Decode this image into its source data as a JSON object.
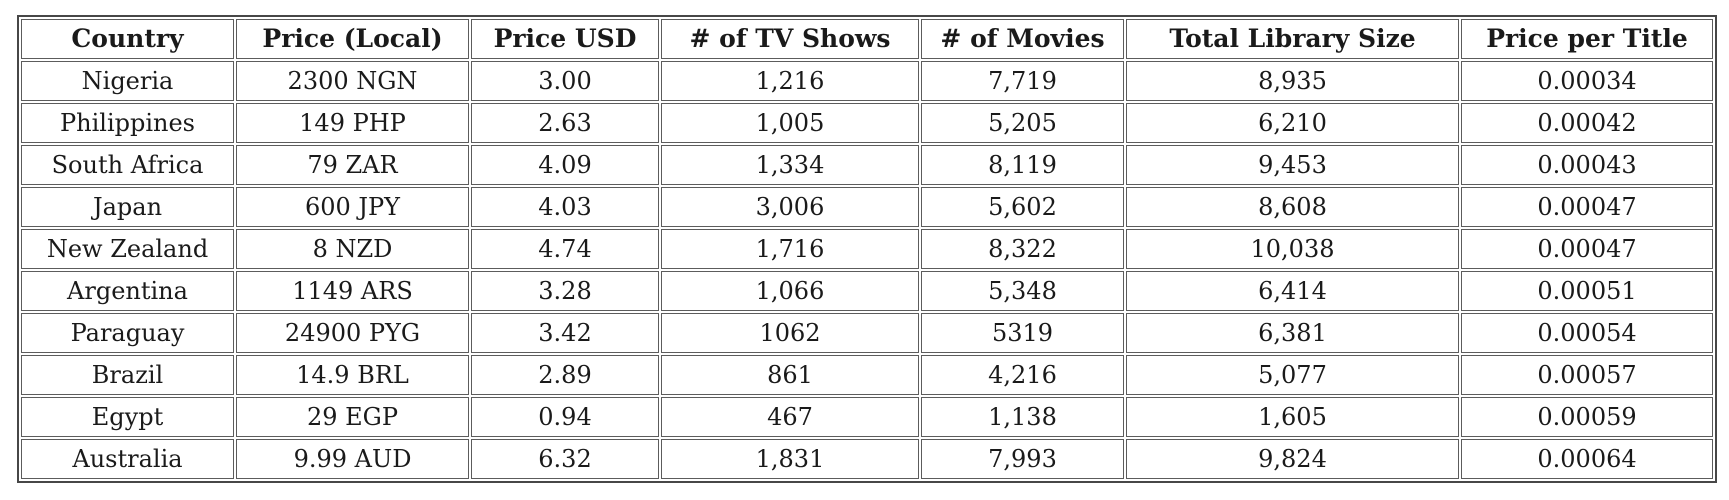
{
  "chart_data": {
    "type": "table",
    "columns": [
      "Country",
      "Price (Local)",
      "Price USD",
      "# of TV Shows",
      "# of Movies",
      "Total Library Size",
      "Price per Title"
    ],
    "rows": [
      [
        "Nigeria",
        "2300 NGN",
        "3.00",
        "1,216",
        "7,719",
        "8,935",
        "0.00034"
      ],
      [
        "Philippines",
        "149 PHP",
        "2.63",
        "1,005",
        "5,205",
        "6,210",
        "0.00042"
      ],
      [
        "South Africa",
        "79 ZAR",
        "4.09",
        "1,334",
        "8,119",
        "9,453",
        "0.00043"
      ],
      [
        "Japan",
        "600 JPY",
        "4.03",
        "3,006",
        "5,602",
        "8,608",
        "0.00047"
      ],
      [
        "New Zealand",
        "8 NZD",
        "4.74",
        "1,716",
        "8,322",
        "10,038",
        "0.00047"
      ],
      [
        "Argentina",
        "1149 ARS",
        "3.28",
        "1,066",
        "5,348",
        "6,414",
        "0.00051"
      ],
      [
        "Paraguay",
        "24900 PYG",
        "3.42",
        "1062",
        "5319",
        "6,381",
        "0.00054"
      ],
      [
        "Brazil",
        "14.9 BRL",
        "2.89",
        "861",
        "4,216",
        "5,077",
        "0.00057"
      ],
      [
        "Egypt",
        "29 EGP",
        "0.94",
        "467",
        "1,138",
        "1,605",
        "0.00059"
      ],
      [
        "Australia",
        "9.99 AUD",
        "6.32",
        "1,831",
        "7,993",
        "9,824",
        "0.00064"
      ]
    ]
  },
  "style": {
    "background_color": "#ffffff",
    "text_color": "#1a1a1a",
    "border_color": "#5c5c5c"
  }
}
